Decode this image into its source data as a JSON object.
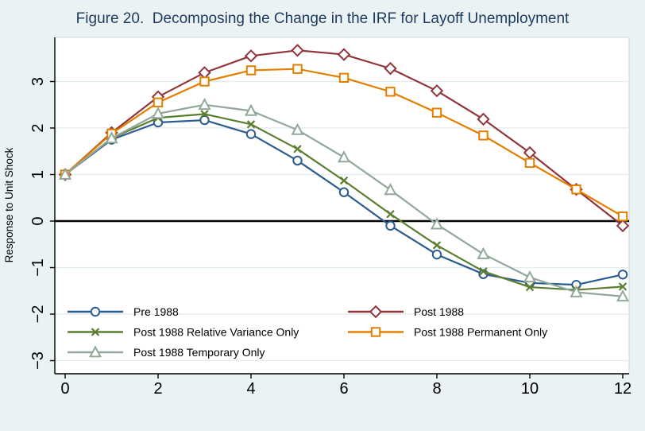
{
  "colors": {
    "background": "#eaf2f3",
    "plot_background": "#ffffff",
    "gridline": "#e0ebed",
    "axis": "#000000",
    "zero_line": "#000000",
    "title": "#1e3a5f",
    "edge_border": "#ccd9dc"
  },
  "chart_data": {
    "type": "line",
    "title": "Figure 20.  Decomposing the Change in the IRF for Layoff Unemployment",
    "xlabel": "",
    "ylabel": "Response to Unit Shock",
    "x": [
      0,
      1,
      2,
      3,
      4,
      5,
      6,
      7,
      8,
      9,
      10,
      11,
      12
    ],
    "xticks": [
      0,
      2,
      4,
      6,
      8,
      10,
      12
    ],
    "yticks": [
      3,
      2,
      1,
      0,
      -1,
      -2,
      -3
    ],
    "xlim": [
      -0.22,
      12.14
    ],
    "ylim": [
      -3.28,
      3.95
    ],
    "grid": "horizontal",
    "zero_reference_line": true,
    "legend_position": "inside-bottom-left",
    "series": [
      {
        "name": "Pre 1988",
        "marker": "circle",
        "color": "#2c5c8f",
        "values": [
          1.0,
          1.75,
          2.12,
          2.17,
          1.87,
          1.3,
          0.62,
          -0.1,
          -0.72,
          -1.14,
          -1.33,
          -1.37,
          -1.15
        ]
      },
      {
        "name": "Post 1988",
        "marker": "diamond",
        "color": "#90353b",
        "values": [
          1.0,
          1.9,
          2.67,
          3.19,
          3.55,
          3.67,
          3.58,
          3.28,
          2.8,
          2.19,
          1.47,
          0.68,
          -0.1
        ]
      },
      {
        "name": "Post 1988 Relative Variance Only",
        "marker": "x",
        "color": "#5b7e31",
        "values": [
          1.0,
          1.78,
          2.22,
          2.3,
          2.08,
          1.55,
          0.87,
          0.15,
          -0.52,
          -1.08,
          -1.42,
          -1.48,
          -1.41
        ]
      },
      {
        "name": "Post 1988 Permanent Only",
        "marker": "square",
        "color": "#e37e00",
        "values": [
          1.0,
          1.88,
          2.55,
          3.0,
          3.24,
          3.27,
          3.08,
          2.78,
          2.33,
          1.84,
          1.25,
          0.68,
          0.1
        ]
      },
      {
        "name": "Post 1988 Temporary Only",
        "marker": "triangle",
        "color": "#92a89a",
        "values": [
          1.0,
          1.78,
          2.31,
          2.5,
          2.37,
          1.96,
          1.37,
          0.67,
          -0.07,
          -0.71,
          -1.21,
          -1.53,
          -1.62
        ]
      }
    ],
    "legend_columns": [
      [
        0,
        2,
        4
      ],
      [
        1,
        3
      ]
    ]
  }
}
